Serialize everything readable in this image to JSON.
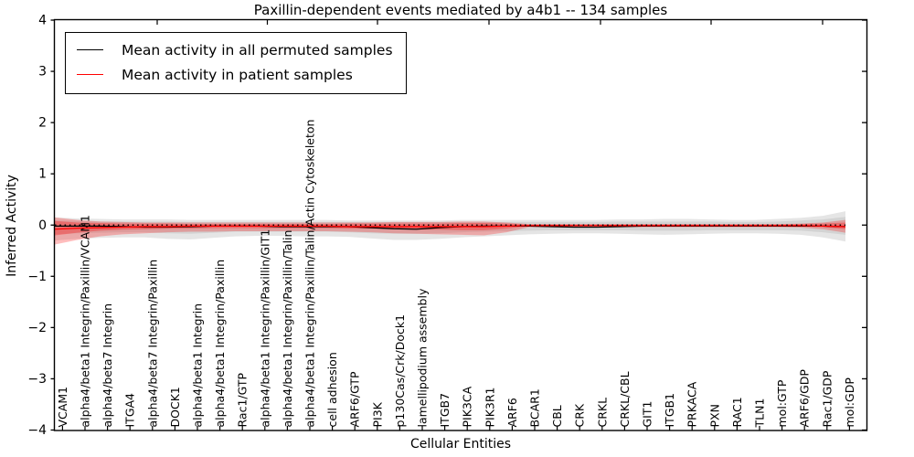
{
  "figure": {
    "title": "Paxillin-dependent events mediated by a4b1 -- 134 samples",
    "xlabel": "Cellular Entities",
    "ylabel": "Inferred Activity"
  },
  "legend": {
    "position": "upper left",
    "entries": [
      {
        "label": "Mean activity in all permuted samples",
        "color": "#000000"
      },
      {
        "label": "Mean activity in patient samples",
        "color": "#ff0000"
      }
    ]
  },
  "chart_data": {
    "type": "line",
    "title": "Paxillin-dependent events mediated by a4b1 -- 134 samples",
    "xlabel": "Cellular Entities",
    "ylabel": "Inferred Activity",
    "ylim": [
      -4,
      4
    ],
    "yticks": [
      -4,
      -3,
      -2,
      -1,
      0,
      1,
      2,
      3,
      4
    ],
    "grid": false,
    "legend_position": "upper left",
    "zero_line": {
      "style": "dotted",
      "color": "#000000",
      "y": 0
    },
    "categories": [
      "VCAM1",
      "alpha4/beta1 Integrin/Paxillin/VCAM1",
      "alpha4/beta7 Integrin",
      "ITGA4",
      "alpha4/beta7 Integrin/Paxillin",
      "DOCK1",
      "alpha4/beta1 Integrin",
      "alpha4/beta1 Integrin/Paxillin",
      "Rac1/GTP",
      "alpha4/beta1 Integrin/Paxillin/GIT1",
      "alpha4/beta1 Integrin/Paxillin/Talin",
      "alpha4/beta1 Integrin/Paxillin/Talin/Actin Cytoskeleton",
      "cell adhesion",
      "ARF6/GTP",
      "PI3K",
      "p130Cas/Crk/Dock1",
      "lamellipodium assembly",
      "ITGB7",
      "PIK3CA",
      "PIK3R1",
      "ARF6",
      "BCAR1",
      "CBL",
      "CRK",
      "CRKL",
      "CRKL/CBL",
      "GIT1",
      "ITGB1",
      "PRKACA",
      "PXN",
      "RAC1",
      "TLN1",
      "mol:GTP",
      "ARF6/GDP",
      "Rac1/GDP",
      "mol:GDP"
    ],
    "series": [
      {
        "name": "Mean activity in all permuted samples",
        "color": "#000000",
        "values": [
          -0.02,
          -0.02,
          -0.02,
          -0.03,
          -0.04,
          -0.04,
          -0.03,
          -0.02,
          -0.02,
          -0.02,
          -0.03,
          -0.03,
          -0.03,
          -0.03,
          -0.05,
          -0.07,
          -0.08,
          -0.05,
          -0.03,
          -0.02,
          -0.02,
          -0.02,
          -0.03,
          -0.04,
          -0.04,
          -0.03,
          -0.02,
          -0.02,
          -0.02,
          -0.02,
          -0.02,
          -0.02,
          -0.02,
          -0.02,
          -0.02,
          -0.03
        ]
      },
      {
        "name": "Mean activity in patient samples",
        "color": "#ff0000",
        "values": [
          -0.08,
          -0.06,
          -0.05,
          -0.04,
          -0.03,
          -0.03,
          -0.02,
          -0.02,
          -0.02,
          -0.02,
          -0.02,
          -0.02,
          -0.02,
          -0.03,
          -0.03,
          -0.03,
          -0.03,
          -0.03,
          -0.03,
          -0.03,
          -0.02,
          -0.01,
          -0.01,
          -0.01,
          -0.01,
          -0.01,
          -0.01,
          -0.01,
          -0.01,
          -0.01,
          -0.01,
          -0.01,
          -0.01,
          -0.01,
          -0.02,
          -0.03
        ]
      }
    ],
    "bands": [
      {
        "name": "permuted-range-outer",
        "color": "rgba(0,0,0,0.10)",
        "upper": [
          0.15,
          0.13,
          0.12,
          0.11,
          0.11,
          0.11,
          0.1,
          0.1,
          0.1,
          0.1,
          0.1,
          0.1,
          0.1,
          0.09,
          0.09,
          0.09,
          0.09,
          0.09,
          0.1,
          0.1,
          0.1,
          0.1,
          0.1,
          0.1,
          0.1,
          0.11,
          0.11,
          0.12,
          0.12,
          0.11,
          0.1,
          0.1,
          0.12,
          0.14,
          0.18,
          0.27
        ],
        "lower": [
          -0.3,
          -0.27,
          -0.25,
          -0.24,
          -0.24,
          -0.27,
          -0.28,
          -0.25,
          -0.22,
          -0.21,
          -0.21,
          -0.22,
          -0.22,
          -0.23,
          -0.26,
          -0.29,
          -0.29,
          -0.27,
          -0.24,
          -0.22,
          -0.2,
          -0.18,
          -0.17,
          -0.16,
          -0.16,
          -0.17,
          -0.18,
          -0.19,
          -0.18,
          -0.17,
          -0.16,
          -0.16,
          -0.17,
          -0.19,
          -0.24,
          -0.32
        ]
      },
      {
        "name": "permuted-range-inner",
        "color": "rgba(0,0,0,0.08)",
        "upper": [
          0.09,
          0.08,
          0.07,
          0.07,
          0.07,
          0.07,
          0.06,
          0.06,
          0.06,
          0.06,
          0.06,
          0.06,
          0.06,
          0.06,
          0.06,
          0.06,
          0.06,
          0.06,
          0.06,
          0.06,
          0.06,
          0.06,
          0.06,
          0.06,
          0.06,
          0.07,
          0.07,
          0.07,
          0.07,
          0.07,
          0.06,
          0.06,
          0.07,
          0.09,
          0.11,
          0.16
        ],
        "lower": [
          -0.18,
          -0.16,
          -0.15,
          -0.14,
          -0.14,
          -0.16,
          -0.17,
          -0.15,
          -0.13,
          -0.13,
          -0.13,
          -0.13,
          -0.13,
          -0.14,
          -0.16,
          -0.17,
          -0.17,
          -0.16,
          -0.14,
          -0.13,
          -0.12,
          -0.11,
          -0.1,
          -0.1,
          -0.1,
          -0.1,
          -0.11,
          -0.11,
          -0.11,
          -0.1,
          -0.1,
          -0.1,
          -0.1,
          -0.11,
          -0.14,
          -0.19
        ]
      },
      {
        "name": "patient-range-outer",
        "color": "rgba(255,0,0,0.26)",
        "upper": [
          0.15,
          0.1,
          0.07,
          0.06,
          0.05,
          0.05,
          0.05,
          0.05,
          0.05,
          0.05,
          0.05,
          0.05,
          0.05,
          0.05,
          0.05,
          0.06,
          0.06,
          0.06,
          0.07,
          0.07,
          0.05,
          0.02,
          0.02,
          0.02,
          0.02,
          0.02,
          0.02,
          0.02,
          0.02,
          0.02,
          0.02,
          0.02,
          0.02,
          0.03,
          0.05,
          0.1
        ],
        "lower": [
          -0.38,
          -0.29,
          -0.22,
          -0.18,
          -0.16,
          -0.14,
          -0.13,
          -0.13,
          -0.12,
          -0.12,
          -0.12,
          -0.12,
          -0.12,
          -0.13,
          -0.14,
          -0.16,
          -0.17,
          -0.18,
          -0.19,
          -0.2,
          -0.14,
          -0.04,
          -0.04,
          -0.04,
          -0.04,
          -0.04,
          -0.04,
          -0.04,
          -0.04,
          -0.04,
          -0.04,
          -0.04,
          -0.04,
          -0.05,
          -0.08,
          -0.15
        ]
      },
      {
        "name": "patient-range-inner",
        "color": "rgba(255,0,0,0.30)",
        "upper": [
          0.08,
          0.05,
          0.04,
          0.03,
          0.03,
          0.03,
          0.02,
          0.02,
          0.02,
          0.02,
          0.02,
          0.02,
          0.02,
          0.03,
          0.03,
          0.03,
          0.03,
          0.03,
          0.04,
          0.04,
          0.03,
          0.01,
          0.01,
          0.01,
          0.01,
          0.01,
          0.01,
          0.01,
          0.01,
          0.01,
          0.01,
          0.01,
          0.01,
          0.02,
          0.03,
          0.05
        ],
        "lower": [
          -0.2,
          -0.15,
          -0.11,
          -0.09,
          -0.08,
          -0.07,
          -0.07,
          -0.06,
          -0.06,
          -0.06,
          -0.06,
          -0.06,
          -0.06,
          -0.07,
          -0.07,
          -0.08,
          -0.09,
          -0.09,
          -0.1,
          -0.1,
          -0.07,
          -0.02,
          -0.02,
          -0.02,
          -0.02,
          -0.02,
          -0.02,
          -0.02,
          -0.02,
          -0.02,
          -0.02,
          -0.02,
          -0.02,
          -0.03,
          -0.04,
          -0.08
        ]
      }
    ]
  }
}
